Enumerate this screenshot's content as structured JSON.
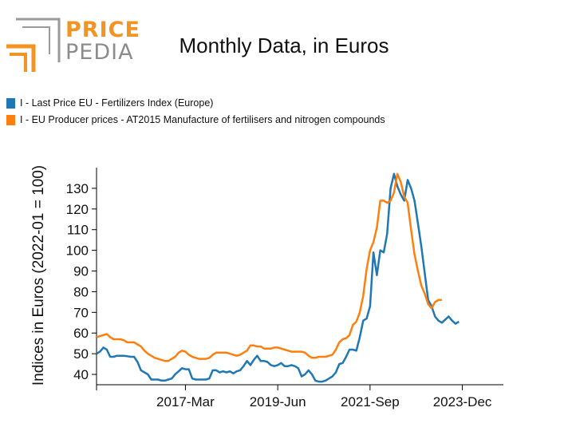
{
  "logo": {
    "top": "PRICE",
    "bottom": "PEDIA"
  },
  "chart_data": {
    "type": "line",
    "title": "Monthly Data, in Euros",
    "ylabel": "Indices in Euros (2022-01 = 100)",
    "xlabel": "",
    "ylim": [
      35,
      140
    ],
    "yticks": [
      40,
      50,
      60,
      70,
      80,
      90,
      100,
      110,
      120,
      130
    ],
    "xlim": [
      0,
      119
    ],
    "xticks": [
      {
        "label": "2017-Mar",
        "index": 26
      },
      {
        "label": "2019-Jun",
        "index": 53
      },
      {
        "label": "2021-Sep",
        "index": 80
      },
      {
        "label": "2023-Dec",
        "index": 107
      }
    ],
    "start_month": "2015-01",
    "series": [
      {
        "name": "I - Last Price EU - Fertilizers Index (Europe)",
        "color": "#1f77b4",
        "values": [
          50,
          51,
          53,
          52,
          48.5,
          48.5,
          49,
          49,
          49,
          48.8,
          48.5,
          48.5,
          46,
          42,
          41,
          40,
          37.5,
          37.5,
          37.5,
          37,
          37,
          37.5,
          38,
          40,
          41.5,
          43,
          42.5,
          42.5,
          38,
          37.5,
          37.5,
          37.5,
          37.5,
          38,
          42,
          42,
          41,
          41.5,
          41,
          41.5,
          40.5,
          41.5,
          42,
          44,
          46.5,
          44.5,
          47,
          49,
          46.5,
          46.5,
          46,
          44.5,
          44,
          44.5,
          45.5,
          44,
          44,
          44.5,
          44,
          43,
          39,
          40,
          42,
          40,
          37,
          36.5,
          36.5,
          37,
          38,
          39,
          41,
          45,
          45.5,
          48.5,
          52,
          52,
          51.5,
          58,
          66,
          67,
          73,
          99,
          88,
          100,
          99,
          108,
          130,
          137,
          131,
          127,
          124,
          134,
          130,
          124,
          113,
          102,
          89,
          76,
          73,
          68,
          66,
          65,
          66.5,
          68,
          66,
          64.5,
          65.5
        ]
      },
      {
        "name": "I - EU Producer prices - AT2015 Manufacture of fertilisers and nitrogen compounds",
        "color": "#ff7f0e",
        "values": [
          58,
          58.5,
          59,
          59.5,
          58,
          57,
          57,
          57,
          56.5,
          55.5,
          55.5,
          55.5,
          54.5,
          53.5,
          51.5,
          50,
          49,
          48,
          47.5,
          47,
          46.5,
          46.5,
          47.5,
          48.5,
          50.5,
          51.5,
          51,
          49.5,
          48.5,
          48,
          47.5,
          47.5,
          47.5,
          48,
          49.5,
          50.5,
          50.5,
          50.5,
          50.5,
          50,
          49.5,
          49,
          49.5,
          50.5,
          51.5,
          54,
          54,
          53.5,
          53.5,
          52.5,
          52.5,
          52.5,
          53,
          53,
          52.5,
          52,
          51.5,
          51,
          51,
          51,
          51,
          50.5,
          49,
          48,
          48,
          48.5,
          48.5,
          48.5,
          49,
          49.5,
          52,
          55.5,
          57,
          57.5,
          59,
          64,
          65.5,
          70,
          78,
          91,
          100,
          104,
          111,
          124,
          124,
          123,
          124,
          128,
          137,
          133,
          126,
          123,
          110,
          98,
          90,
          83,
          79,
          74,
          72,
          75,
          76,
          76
        ]
      }
    ]
  }
}
